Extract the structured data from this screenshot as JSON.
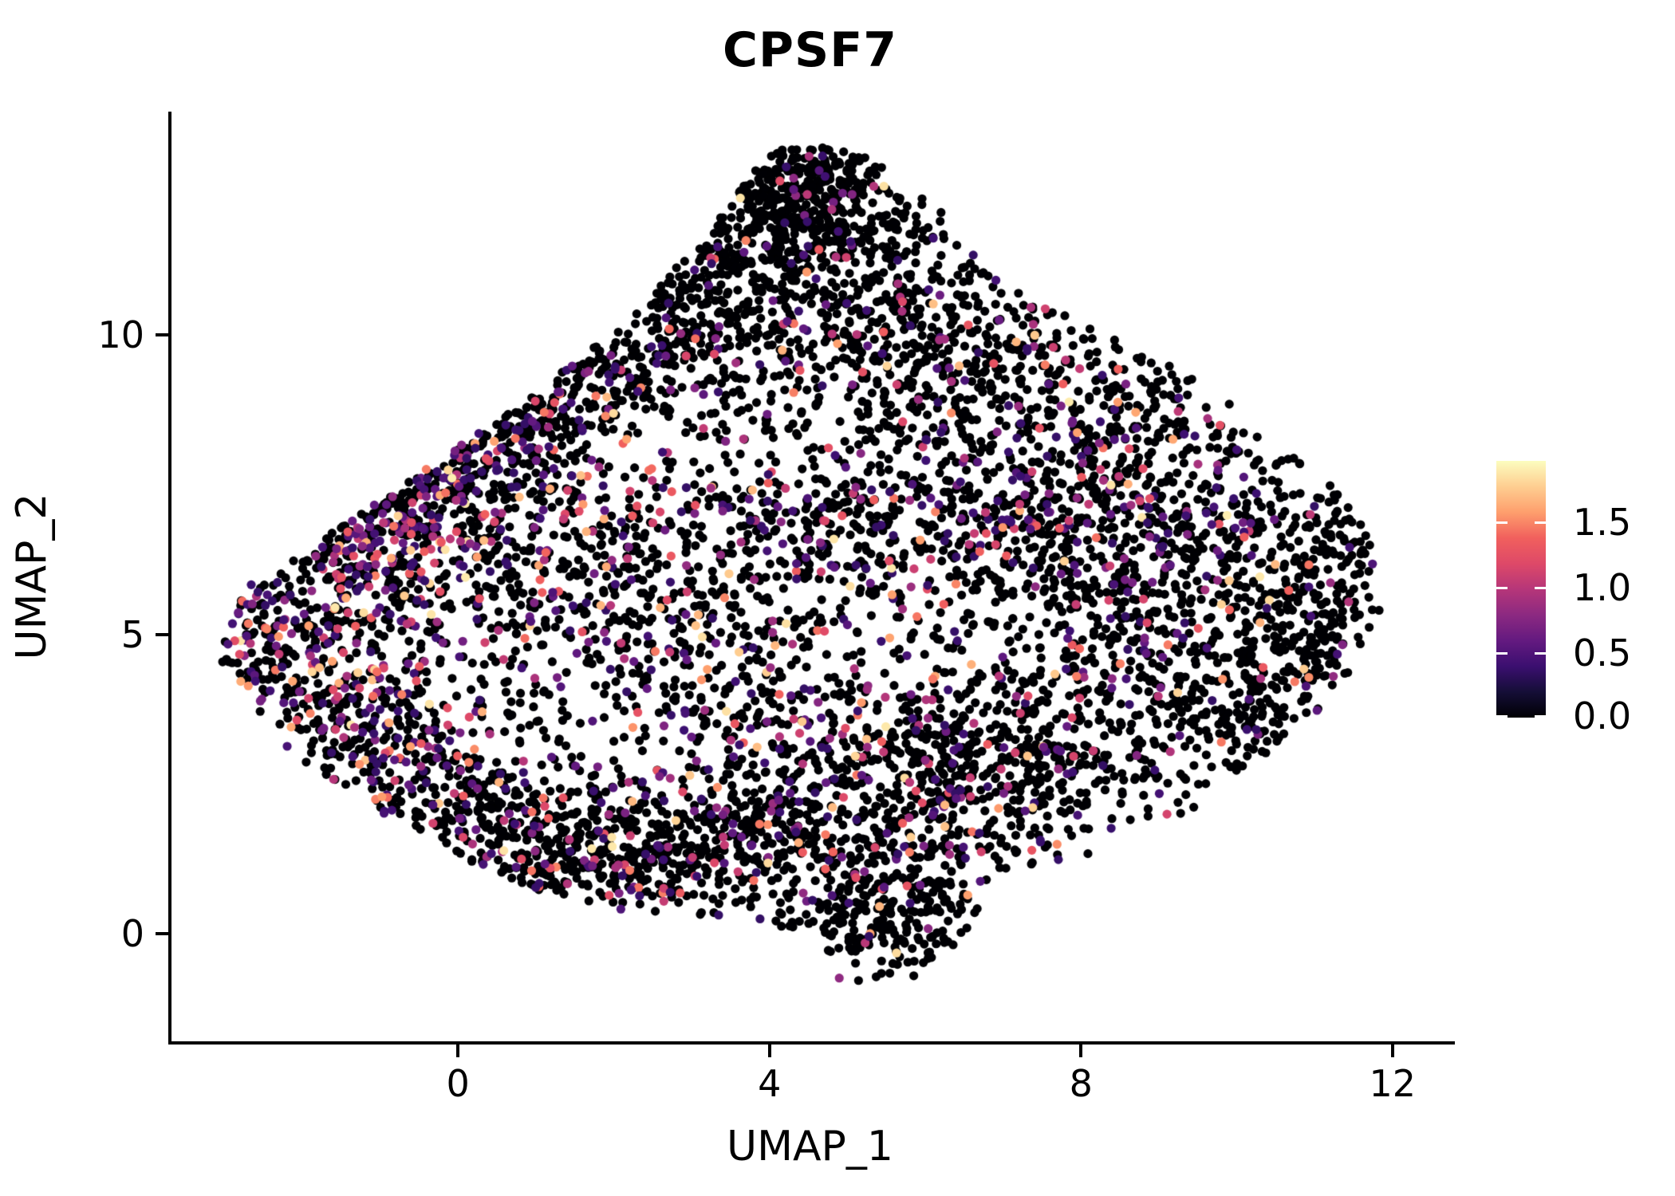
{
  "figure": {
    "title": "CPSF7"
  },
  "chart_data": {
    "type": "scatter",
    "title": "CPSF7",
    "xlabel": "UMAP_1",
    "ylabel": "UMAP_2",
    "x_domain": [
      -3.72,
      12.76
    ],
    "y_domain": [
      -1.79,
      13.72
    ],
    "x_ticks": [
      0,
      4,
      8,
      12
    ],
    "y_ticks": [
      0,
      5,
      10
    ],
    "grid": false,
    "legend_position": "right",
    "point_radius": 5.6,
    "seed": 1337,
    "point_color_zero": "#000004",
    "colormap": {
      "name": "magma",
      "stops": [
        [
          0.0,
          "#000004"
        ],
        [
          0.1,
          "#150E37"
        ],
        [
          0.2,
          "#3B0F70"
        ],
        [
          0.3,
          "#641A80"
        ],
        [
          0.4,
          "#8C2981"
        ],
        [
          0.5,
          "#B63679"
        ],
        [
          0.6,
          "#DE4968"
        ],
        [
          0.7,
          "#F1605D"
        ],
        [
          0.8,
          "#FE9F6D"
        ],
        [
          0.9,
          "#FECE91"
        ],
        [
          1.0,
          "#FCFDBF"
        ]
      ]
    },
    "colorbar": {
      "min": 0,
      "max": 1.96,
      "tick_values": [
        0.0,
        0.5,
        1.0,
        1.5
      ],
      "tick_labels": [
        "0.0",
        "0.5",
        "1.0",
        "1.5"
      ]
    },
    "expression_model": {
      "base": 0.35,
      "range": 1.55,
      "shape": 2.2
    },
    "hull": [
      [
        -3.1,
        4.6
      ],
      [
        -2.8,
        5.8
      ],
      [
        -1.3,
        7.0
      ],
      [
        0.5,
        8.6
      ],
      [
        2.2,
        10.3
      ],
      [
        3.1,
        11.6
      ],
      [
        4.0,
        13.1
      ],
      [
        5.0,
        13.2
      ],
      [
        6.3,
        11.9
      ],
      [
        7.3,
        10.6
      ],
      [
        9.3,
        9.4
      ],
      [
        10.8,
        8.0
      ],
      [
        11.7,
        6.7
      ],
      [
        11.8,
        5.3
      ],
      [
        11.2,
        3.9
      ],
      [
        10.5,
        3.2
      ],
      [
        9.6,
        2.2
      ],
      [
        8.3,
        1.4
      ],
      [
        7.0,
        0.9
      ],
      [
        6.4,
        -0.1
      ],
      [
        5.9,
        -0.8
      ],
      [
        4.9,
        -0.9
      ],
      [
        4.6,
        0.0
      ],
      [
        3.4,
        0.3
      ],
      [
        2.0,
        0.4
      ],
      [
        0.8,
        0.8
      ],
      [
        -0.5,
        1.6
      ],
      [
        -1.6,
        2.5
      ],
      [
        -2.6,
        3.4
      ]
    ],
    "clusters": [
      [
        4.35,
        12.0,
        0.85,
        0.55,
        520,
        0.05
      ],
      [
        4.5,
        12.7,
        0.5,
        0.3,
        120,
        0.04
      ],
      [
        2.7,
        10.6,
        1.25,
        0.7,
        380,
        0.07
      ],
      [
        6.3,
        10.4,
        1.3,
        0.75,
        380,
        0.08
      ],
      [
        4.5,
        9.4,
        2.3,
        0.8,
        420,
        0.1
      ],
      [
        -1.3,
        6.6,
        0.5,
        0.5,
        150,
        0.38
      ],
      [
        -0.6,
        7.3,
        0.55,
        0.55,
        180,
        0.4
      ],
      [
        0.2,
        7.9,
        0.6,
        0.5,
        170,
        0.35
      ],
      [
        1.0,
        8.6,
        0.6,
        0.5,
        150,
        0.25
      ],
      [
        1.8,
        9.3,
        0.6,
        0.5,
        130,
        0.15
      ],
      [
        -2.55,
        5.1,
        0.5,
        0.65,
        210,
        0.35
      ],
      [
        -1.2,
        5.6,
        0.8,
        0.8,
        200,
        0.3
      ],
      [
        0.8,
        6.2,
        1.3,
        1.0,
        330,
        0.28
      ],
      [
        4.3,
        6.8,
        1.7,
        0.75,
        430,
        0.22
      ],
      [
        7.0,
        7.0,
        1.3,
        0.9,
        380,
        0.25
      ],
      [
        9.0,
        6.2,
        1.3,
        1.1,
        520,
        0.18
      ],
      [
        11.0,
        5.6,
        0.5,
        1.2,
        240,
        0.06
      ],
      [
        8.6,
        8.6,
        1.3,
        0.8,
        300,
        0.12
      ],
      [
        8.7,
        3.6,
        1.3,
        1.0,
        420,
        0.1
      ],
      [
        10.2,
        4.0,
        0.6,
        0.8,
        150,
        0.05
      ],
      [
        5.2,
        3.0,
        1.7,
        0.95,
        500,
        0.2
      ],
      [
        2.8,
        4.6,
        1.5,
        1.1,
        380,
        0.18
      ],
      [
        -1.5,
        3.8,
        0.6,
        0.6,
        160,
        0.28
      ],
      [
        -0.7,
        2.9,
        0.6,
        0.6,
        170,
        0.28
      ],
      [
        0.2,
        2.2,
        0.7,
        0.6,
        180,
        0.25
      ],
      [
        1.2,
        1.6,
        0.7,
        0.5,
        170,
        0.22
      ],
      [
        2.3,
        1.1,
        0.9,
        0.55,
        280,
        0.2
      ],
      [
        3.8,
        1.6,
        1.0,
        0.6,
        250,
        0.18
      ],
      [
        6.2,
        2.2,
        1.0,
        0.8,
        300,
        0.12
      ],
      [
        5.35,
        0.35,
        0.6,
        0.55,
        260,
        0.08
      ]
    ]
  }
}
